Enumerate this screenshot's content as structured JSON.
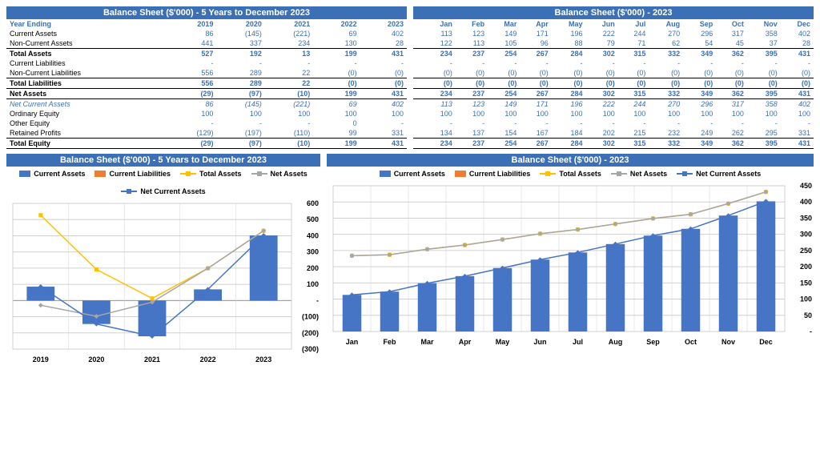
{
  "colors": {
    "header_bg": "#3b6fb6",
    "header_text": "#ffffff",
    "value_text": "#3b6fb6",
    "bar_fill": "#4575c4",
    "orange": "#ed7d31",
    "yellow": "#ffc000",
    "gray": "#a6a6a6",
    "blue_line": "#4575c4",
    "grid": "#d0d0d0",
    "black": "#000000"
  },
  "yearly_table": {
    "title": "Balance Sheet ($'000) - 5 Years to December 2023",
    "header_row": [
      "Year Ending",
      "2019",
      "2020",
      "2021",
      "2022",
      "2023"
    ],
    "rows": [
      {
        "label": "Current Assets",
        "vals": [
          "86",
          "(145)",
          "(221)",
          "69",
          "402"
        ]
      },
      {
        "label": "Non-Current Assets",
        "vals": [
          "441",
          "337",
          "234",
          "130",
          "28"
        ],
        "underline": true
      },
      {
        "label": "Total Assets",
        "vals": [
          "527",
          "192",
          "13",
          "199",
          "431"
        ],
        "bold": true
      },
      {
        "label": "Current Liabilities",
        "vals": [
          "-",
          "-",
          "-",
          "-",
          "-"
        ]
      },
      {
        "label": "Non-Current Liabilities",
        "vals": [
          "556",
          "289",
          "22",
          "(0)",
          "(0)"
        ],
        "underline": true
      },
      {
        "label": "Total Liabilities",
        "vals": [
          "556",
          "289",
          "22",
          "(0)",
          "(0)"
        ],
        "bold": true,
        "underline": true
      },
      {
        "label": "Net Assets",
        "vals": [
          "(29)",
          "(97)",
          "(10)",
          "199",
          "431"
        ],
        "bold": true,
        "underline": true
      },
      {
        "label": "Net Current Assets",
        "vals": [
          "86",
          "(145)",
          "(221)",
          "69",
          "402"
        ],
        "italic": true
      },
      {
        "label": "Ordinary Equity",
        "vals": [
          "100",
          "100",
          "100",
          "100",
          "100"
        ]
      },
      {
        "label": "Other Equity",
        "vals": [
          "-",
          "-",
          "-",
          "0",
          "-"
        ]
      },
      {
        "label": "Retained Profits",
        "vals": [
          "(129)",
          "(197)",
          "(110)",
          "99",
          "331"
        ],
        "underline": true
      },
      {
        "label": "Total Equity",
        "vals": [
          "(29)",
          "(97)",
          "(10)",
          "199",
          "431"
        ],
        "bold": true,
        "underline": true
      }
    ]
  },
  "monthly_table": {
    "title": "Balance Sheet ($'000) - 2023",
    "header_row": [
      "",
      "Jan",
      "Feb",
      "Mar",
      "Apr",
      "May",
      "Jun",
      "Jul",
      "Aug",
      "Sep",
      "Oct",
      "Nov",
      "Dec"
    ],
    "rows": [
      {
        "label": "",
        "vals": [
          "113",
          "123",
          "149",
          "171",
          "196",
          "222",
          "244",
          "270",
          "296",
          "317",
          "358",
          "402"
        ]
      },
      {
        "label": "",
        "vals": [
          "122",
          "113",
          "105",
          "96",
          "88",
          "79",
          "71",
          "62",
          "54",
          "45",
          "37",
          "28"
        ],
        "underline": true
      },
      {
        "label": "",
        "vals": [
          "234",
          "237",
          "254",
          "267",
          "284",
          "302",
          "315",
          "332",
          "349",
          "362",
          "395",
          "431"
        ],
        "bold": true
      },
      {
        "label": "",
        "vals": [
          "-",
          "-",
          "-",
          "-",
          "-",
          "-",
          "-",
          "-",
          "-",
          "-",
          "-",
          "-"
        ]
      },
      {
        "label": "",
        "vals": [
          "(0)",
          "(0)",
          "(0)",
          "(0)",
          "(0)",
          "(0)",
          "(0)",
          "(0)",
          "(0)",
          "(0)",
          "(0)",
          "(0)"
        ],
        "underline": true
      },
      {
        "label": "",
        "vals": [
          "(0)",
          "(0)",
          "(0)",
          "(0)",
          "(0)",
          "(0)",
          "(0)",
          "(0)",
          "(0)",
          "(0)",
          "(0)",
          "(0)"
        ],
        "bold": true,
        "underline": true
      },
      {
        "label": "",
        "vals": [
          "234",
          "237",
          "254",
          "267",
          "284",
          "302",
          "315",
          "332",
          "349",
          "362",
          "395",
          "431"
        ],
        "bold": true,
        "underline": true
      },
      {
        "label": "",
        "vals": [
          "113",
          "123",
          "149",
          "171",
          "196",
          "222",
          "244",
          "270",
          "296",
          "317",
          "358",
          "402"
        ],
        "italic": true
      },
      {
        "label": "",
        "vals": [
          "100",
          "100",
          "100",
          "100",
          "100",
          "100",
          "100",
          "100",
          "100",
          "100",
          "100",
          "100"
        ]
      },
      {
        "label": "",
        "vals": [
          "-",
          "-",
          "-",
          "-",
          "-",
          "-",
          "-",
          "-",
          "-",
          "-",
          "-",
          "-"
        ]
      },
      {
        "label": "",
        "vals": [
          "134",
          "137",
          "154",
          "167",
          "184",
          "202",
          "215",
          "232",
          "249",
          "262",
          "295",
          "331"
        ],
        "underline": true
      },
      {
        "label": "",
        "vals": [
          "234",
          "237",
          "254",
          "267",
          "284",
          "302",
          "315",
          "332",
          "349",
          "362",
          "395",
          "431"
        ],
        "bold": true,
        "underline": true
      }
    ]
  },
  "yearly_chart": {
    "title": "Balance Sheet ($'000) - 5 Years to December 2023",
    "legend": [
      {
        "label": "Current Assets",
        "type": "bar",
        "color": "#4575c4"
      },
      {
        "label": "Current Liabilities",
        "type": "bar",
        "color": "#ed7d31"
      },
      {
        "label": "Total Assets",
        "type": "line",
        "color": "#ffc000"
      },
      {
        "label": "Net Assets",
        "type": "line",
        "color": "#a6a6a6"
      },
      {
        "label": "Net Current Assets",
        "type": "line",
        "color": "#4575c4"
      }
    ],
    "categories": [
      "2019",
      "2020",
      "2021",
      "2022",
      "2023"
    ],
    "current_assets": [
      86,
      -145,
      -221,
      69,
      402
    ],
    "current_liabilities": [
      0,
      0,
      0,
      0,
      0
    ],
    "total_assets": [
      527,
      192,
      13,
      199,
      431
    ],
    "net_assets": [
      -29,
      -97,
      -10,
      199,
      431
    ],
    "net_current_assets": [
      86,
      -145,
      -221,
      69,
      402
    ],
    "ylim": [
      -300,
      600
    ],
    "yticks": [
      -300,
      -200,
      -100,
      0,
      100,
      200,
      300,
      400,
      500,
      600
    ],
    "ytick_labels": [
      "(300)",
      "(200)",
      "(100)",
      "-",
      "100",
      "200",
      "300",
      "400",
      "500",
      "600"
    ]
  },
  "monthly_chart": {
    "title": "Balance Sheet ($'000) - 2023",
    "legend": [
      {
        "label": "Current Assets",
        "type": "bar",
        "color": "#4575c4"
      },
      {
        "label": "Current Liabilities",
        "type": "bar",
        "color": "#ed7d31"
      },
      {
        "label": "Total Assets",
        "type": "line",
        "color": "#ffc000"
      },
      {
        "label": "Net Assets",
        "type": "line",
        "color": "#a6a6a6"
      },
      {
        "label": "Net Current Assets",
        "type": "line",
        "color": "#4575c4"
      }
    ],
    "categories": [
      "Jan",
      "Feb",
      "Mar",
      "Apr",
      "May",
      "Jun",
      "Jul",
      "Aug",
      "Sep",
      "Oct",
      "Nov",
      "Dec"
    ],
    "current_assets": [
      113,
      123,
      149,
      171,
      196,
      222,
      244,
      270,
      296,
      317,
      358,
      402
    ],
    "current_liabilities": [
      0,
      0,
      0,
      0,
      0,
      0,
      0,
      0,
      0,
      0,
      0,
      0
    ],
    "total_assets": [
      234,
      237,
      254,
      267,
      284,
      302,
      315,
      332,
      349,
      362,
      395,
      431
    ],
    "net_assets": [
      234,
      237,
      254,
      267,
      284,
      302,
      315,
      332,
      349,
      362,
      395,
      431
    ],
    "net_current_assets": [
      113,
      123,
      149,
      171,
      196,
      222,
      244,
      270,
      296,
      317,
      358,
      402
    ],
    "ylim": [
      0,
      450
    ],
    "yticks": [
      0,
      50,
      100,
      150,
      200,
      250,
      300,
      350,
      400,
      450
    ],
    "ytick_labels": [
      "-",
      "50",
      "100",
      "150",
      "200",
      "250",
      "300",
      "350",
      "400",
      "450"
    ]
  }
}
